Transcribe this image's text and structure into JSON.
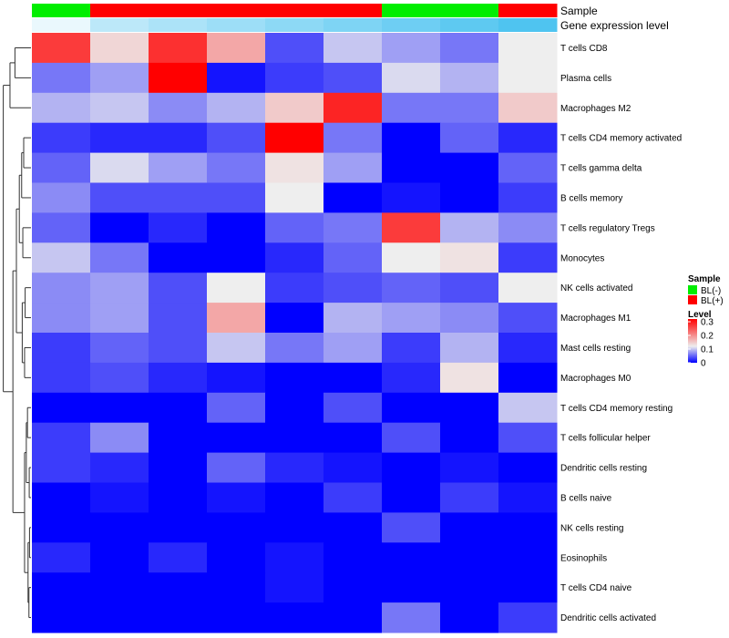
{
  "chart_data": {
    "type": "heatmap",
    "annotations": {
      "sample_label": "Sample",
      "expression_label": "Gene expression level",
      "sample_groups": [
        "BL(-)",
        "BL(+)",
        "BL(+)",
        "BL(+)",
        "BL(+)",
        "BL(+)",
        "BL(-)",
        "BL(-)",
        "BL(+)"
      ],
      "expression_values": [
        0.35,
        0.5,
        0.55,
        0.6,
        0.65,
        0.7,
        0.75,
        0.8,
        0.85
      ]
    },
    "rows": [
      "T cells CD8",
      "Plasma cells",
      "Macrophages M2",
      "T cells CD4 memory activated",
      "T cells gamma delta",
      "B cells memory",
      "T cells regulatory  Tregs",
      "Monocytes",
      "NK cells activated",
      "Macrophages M1",
      "Mast cells resting",
      "Macrophages M0",
      "T cells CD4 memory resting",
      "T cells follicular helper",
      "Dendritic cells resting",
      "B cells naive",
      "NK cells resting",
      "Eosinophils",
      "T cells CD4 naive",
      "Dendritic cells activated"
    ],
    "values": [
      [
        0.27,
        0.14,
        0.28,
        0.18,
        0.04,
        0.1,
        0.08,
        0.06,
        0.12
      ],
      [
        0.06,
        0.08,
        0.32,
        0.01,
        0.03,
        0.04,
        0.11,
        0.09,
        0.12
      ],
      [
        0.09,
        0.1,
        0.07,
        0.09,
        0.15,
        0.29,
        0.06,
        0.06,
        0.15
      ],
      [
        0.03,
        0.02,
        0.02,
        0.04,
        0.32,
        0.06,
        0.0,
        0.05,
        0.02
      ],
      [
        0.05,
        0.11,
        0.08,
        0.06,
        0.13,
        0.08,
        0.0,
        0.0,
        0.05
      ],
      [
        0.07,
        0.04,
        0.04,
        0.04,
        0.12,
        0.0,
        0.01,
        0.0,
        0.03
      ],
      [
        0.05,
        0.0,
        0.02,
        0.0,
        0.05,
        0.06,
        0.27,
        0.09,
        0.07
      ],
      [
        0.1,
        0.06,
        0.0,
        0.0,
        0.02,
        0.05,
        0.12,
        0.13,
        0.03
      ],
      [
        0.07,
        0.08,
        0.04,
        0.12,
        0.03,
        0.04,
        0.05,
        0.04,
        0.12
      ],
      [
        0.07,
        0.08,
        0.04,
        0.18,
        0.0,
        0.09,
        0.08,
        0.07,
        0.04
      ],
      [
        0.03,
        0.05,
        0.04,
        0.1,
        0.06,
        0.08,
        0.03,
        0.09,
        0.02
      ],
      [
        0.03,
        0.04,
        0.02,
        0.01,
        0.0,
        0.0,
        0.02,
        0.13,
        0.0
      ],
      [
        0.0,
        0.0,
        0.0,
        0.05,
        0.0,
        0.04,
        0.0,
        0.0,
        0.1
      ],
      [
        0.03,
        0.07,
        0.0,
        0.0,
        0.0,
        0.0,
        0.04,
        0.0,
        0.04
      ],
      [
        0.03,
        0.02,
        0.0,
        0.05,
        0.02,
        0.01,
        0.0,
        0.01,
        0.0
      ],
      [
        0.0,
        0.01,
        0.0,
        0.01,
        0.0,
        0.03,
        0.0,
        0.03,
        0.01
      ],
      [
        0.0,
        0.0,
        0.0,
        0.0,
        0.0,
        0.0,
        0.04,
        0.0,
        0.0
      ],
      [
        0.02,
        0.0,
        0.02,
        0.0,
        0.01,
        0.0,
        0.0,
        0.0,
        0.0
      ],
      [
        0.0,
        0.0,
        0.0,
        0.0,
        0.01,
        0.0,
        0.0,
        0.0,
        0.0
      ],
      [
        0.0,
        0.0,
        0.0,
        0.0,
        0.0,
        0.0,
        0.06,
        0.0,
        0.03
      ]
    ],
    "color_scale": {
      "min": 0,
      "mid": 0.12,
      "max": 0.32,
      "low": "#0000ff",
      "midcolor": "#eeeeee",
      "high": "#ff0000"
    },
    "legend": {
      "position": "right",
      "sample_title": "Sample",
      "sample_items": [
        {
          "label": "BL(-)",
          "color": "#00ee00"
        },
        {
          "label": "BL(+)",
          "color": "#ff0000"
        }
      ],
      "level_title": "Level",
      "level_ticks": [
        "0.3",
        "0.2",
        "0.1",
        "0"
      ]
    },
    "expression_annotation_colors": {
      "low": "#eaf8fd",
      "high": "#4fc4f0"
    }
  }
}
